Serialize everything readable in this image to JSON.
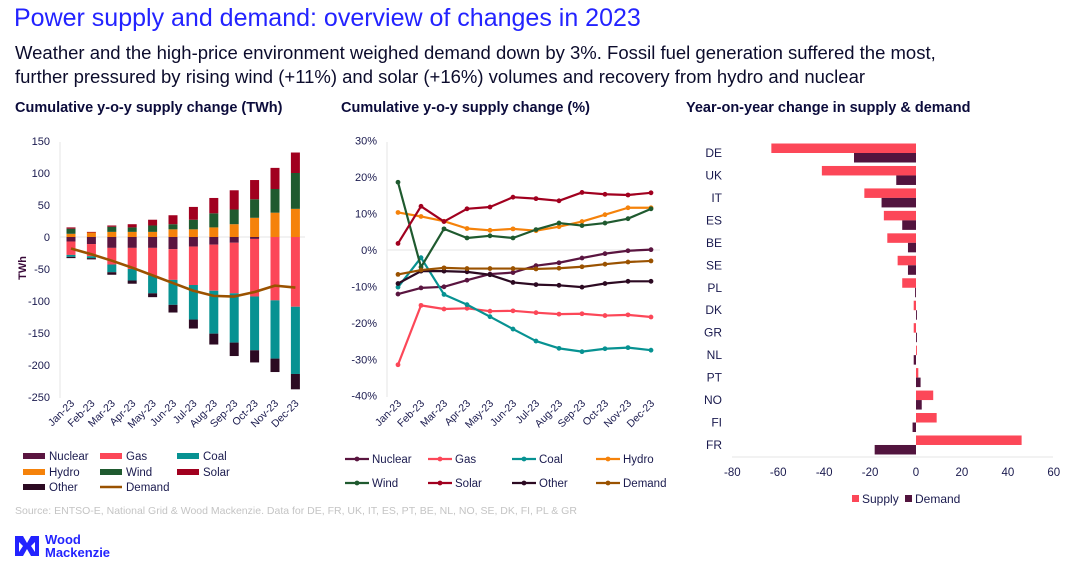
{
  "title": "Power supply and demand: overview of changes in 2023",
  "subtitle_lines": [
    "Weather and the high-price environment weighed demand down by 3%. Fossil fuel generation suffered the most,",
    "further pressured by rising wind (+11%) and solar (+16%) volumes and recovery from hydro and nuclear"
  ],
  "source": "Source: ENTSO-E, National Grid & Wood Mackenzie. Data for DE, FR, UK, IT, ES, PT, BE, NL, NO, SE, DK, FI, PL & GR",
  "logo": {
    "line1": "Wood",
    "line2": "Mackenzie",
    "color": "#2323ff"
  },
  "chart_data": [
    {
      "type": "bar",
      "stacked": true,
      "title": "Cumulative y-o-y supply change (TWh)",
      "ylabel": "TWh",
      "xlabel": "",
      "ylim": [
        -250,
        150
      ],
      "yticks": [
        "150",
        "100",
        "50",
        "0",
        "-50",
        "-100",
        "-150",
        "-200",
        "-250"
      ],
      "ytick_values": [
        150,
        100,
        50,
        0,
        -50,
        -100,
        -150,
        -200,
        -250
      ],
      "legend": "bottom",
      "categories": [
        "Jan-23",
        "Feb-23",
        "Mar-23",
        "Apr-23",
        "May-23",
        "Jun-23",
        "Jul-23",
        "Aug-23",
        "Sep-23",
        "Oct-23",
        "Nov-23",
        "Dec-23"
      ],
      "series": [
        {
          "name": "Nuclear",
          "kind": "bar",
          "color": "#5a1540",
          "values": [
            -7,
            -11,
            -17,
            -17,
            -17,
            -19,
            -15,
            -12,
            -9,
            -3,
            0,
            0
          ]
        },
        {
          "name": "Gas",
          "kind": "bar",
          "color": "#fc4758",
          "values": [
            -21,
            -19,
            -26,
            -33,
            -43,
            -48,
            -60,
            -72,
            -79,
            -90,
            -99,
            -109
          ]
        },
        {
          "name": "Coal",
          "kind": "bar",
          "color": "#079292",
          "values": [
            -3,
            -3,
            -12,
            -18,
            -28,
            -39,
            -54,
            -67,
            -77,
            -84,
            -91,
            -105
          ]
        },
        {
          "name": "Hydro",
          "kind": "bar",
          "color": "#f5820a",
          "values": [
            5,
            7,
            8,
            8,
            8,
            12,
            12,
            15,
            20,
            30,
            38,
            44
          ]
        },
        {
          "name": "Wind",
          "kind": "bar",
          "color": "#1f5a2f",
          "values": [
            8,
            0,
            8,
            7,
            10,
            8,
            15,
            22,
            23,
            29,
            37,
            56
          ]
        },
        {
          "name": "Solar",
          "kind": "bar",
          "color": "#a1001f",
          "values": [
            2,
            1,
            2,
            5,
            9,
            14,
            20,
            24,
            30,
            30,
            33,
            32
          ]
        },
        {
          "name": "Other",
          "kind": "bar",
          "color": "#2c0a22",
          "values": [
            -2,
            -2,
            -4,
            -5,
            -6,
            -12,
            -14,
            -17,
            -21,
            -19,
            -21,
            -24
          ]
        },
        {
          "name": "Demand",
          "kind": "line",
          "color": "#9a5200",
          "values": [
            -18,
            -27,
            -37,
            -48,
            -60,
            -72,
            -84,
            -92,
            -93,
            -86,
            -76,
            -79
          ]
        }
      ]
    },
    {
      "type": "line",
      "title": "Cumulative y-o-y supply change (%)",
      "xlabel": "",
      "ylabel": "",
      "ylim": [
        -40,
        30
      ],
      "yticks": [
        "30%",
        "20%",
        "10%",
        "0%",
        "-10%",
        "-20%",
        "-30%",
        "-40%"
      ],
      "ytick_values": [
        30,
        20,
        10,
        0,
        -10,
        -20,
        -30,
        -40
      ],
      "legend": "bottom",
      "categories": [
        "Jan-23",
        "Feb-23",
        "Mar-23",
        "Apr-23",
        "May-23",
        "Jun-23",
        "Jul-23",
        "Aug-23",
        "Sep-23",
        "Oct-23",
        "Nov-23",
        "Dec-23"
      ],
      "series": [
        {
          "name": "Nuclear",
          "color": "#5a1540",
          "values": [
            -12.1,
            -10.4,
            -10.1,
            -8.3,
            -6.6,
            -6.2,
            -4.3,
            -3.5,
            -2.2,
            -1.0,
            -0.2,
            0.1
          ]
        },
        {
          "name": "Gas",
          "color": "#fc4758",
          "values": [
            -31.5,
            -15.2,
            -16.2,
            -16.0,
            -16.8,
            -16.7,
            -17.2,
            -17.6,
            -17.5,
            -18.0,
            -17.8,
            -18.4
          ]
        },
        {
          "name": "Coal",
          "color": "#079292",
          "values": [
            -10.2,
            -2.1,
            -12.2,
            -15.0,
            -18.3,
            -21.7,
            -25.0,
            -27.0,
            -27.9,
            -27.1,
            -26.8,
            -27.5
          ]
        },
        {
          "name": "Hydro",
          "color": "#f5820a",
          "values": [
            10.3,
            9.2,
            7.9,
            5.9,
            5.4,
            5.8,
            5.3,
            6.4,
            7.8,
            9.7,
            11.6,
            11.6
          ]
        },
        {
          "name": "Wind",
          "color": "#1f5a2f",
          "values": [
            18.6,
            -4.7,
            5.8,
            3.3,
            3.9,
            3.3,
            5.6,
            7.4,
            6.7,
            7.4,
            8.6,
            11.3
          ]
        },
        {
          "name": "Solar",
          "color": "#a1001f",
          "values": [
            1.8,
            12.0,
            7.8,
            11.3,
            11.8,
            14.5,
            14.1,
            13.5,
            15.8,
            15.3,
            15.1,
            15.7
          ]
        },
        {
          "name": "Other",
          "color": "#2c0a22",
          "values": [
            -9.2,
            -5.8,
            -5.8,
            -6.0,
            -6.8,
            -8.9,
            -9.5,
            -9.7,
            -10.2,
            -9.2,
            -8.6,
            -8.6
          ]
        },
        {
          "name": "Demand",
          "color": "#9a5200",
          "values": [
            -6.7,
            -5.5,
            -4.9,
            -5.1,
            -5.1,
            -5.1,
            -5.2,
            -5.0,
            -4.6,
            -3.9,
            -3.3,
            -3.0
          ]
        }
      ]
    },
    {
      "type": "bar",
      "orientation": "horizontal",
      "title": "Year-on-year change in supply & demand",
      "xlabel": "",
      "ylabel": "",
      "xlim": [
        -80,
        60
      ],
      "xticks": [
        "-80",
        "-60",
        "-40",
        "-20",
        "0",
        "20",
        "40",
        "60"
      ],
      "xtick_values": [
        -80,
        -60,
        -40,
        -20,
        0,
        20,
        40,
        60
      ],
      "legend": "bottom",
      "categories": [
        "DE",
        "UK",
        "IT",
        "ES",
        "BE",
        "SE",
        "PL",
        "DK",
        "GR",
        "NL",
        "PT",
        "NO",
        "FI",
        "FR"
      ],
      "series": [
        {
          "name": "Supply",
          "color": "#fc4758",
          "values": [
            -63,
            -41,
            -22.5,
            -14,
            -12.5,
            -8,
            -6,
            -1,
            -1,
            0.4,
            1,
            7.5,
            9,
            46
          ]
        },
        {
          "name": "Demand",
          "color": "#52143e",
          "values": [
            -27,
            -8.6,
            -15,
            -6,
            -3.5,
            -3.5,
            -0.4,
            0.4,
            0.4,
            -1,
            2,
            2.5,
            -1.5,
            -18
          ]
        }
      ]
    }
  ]
}
